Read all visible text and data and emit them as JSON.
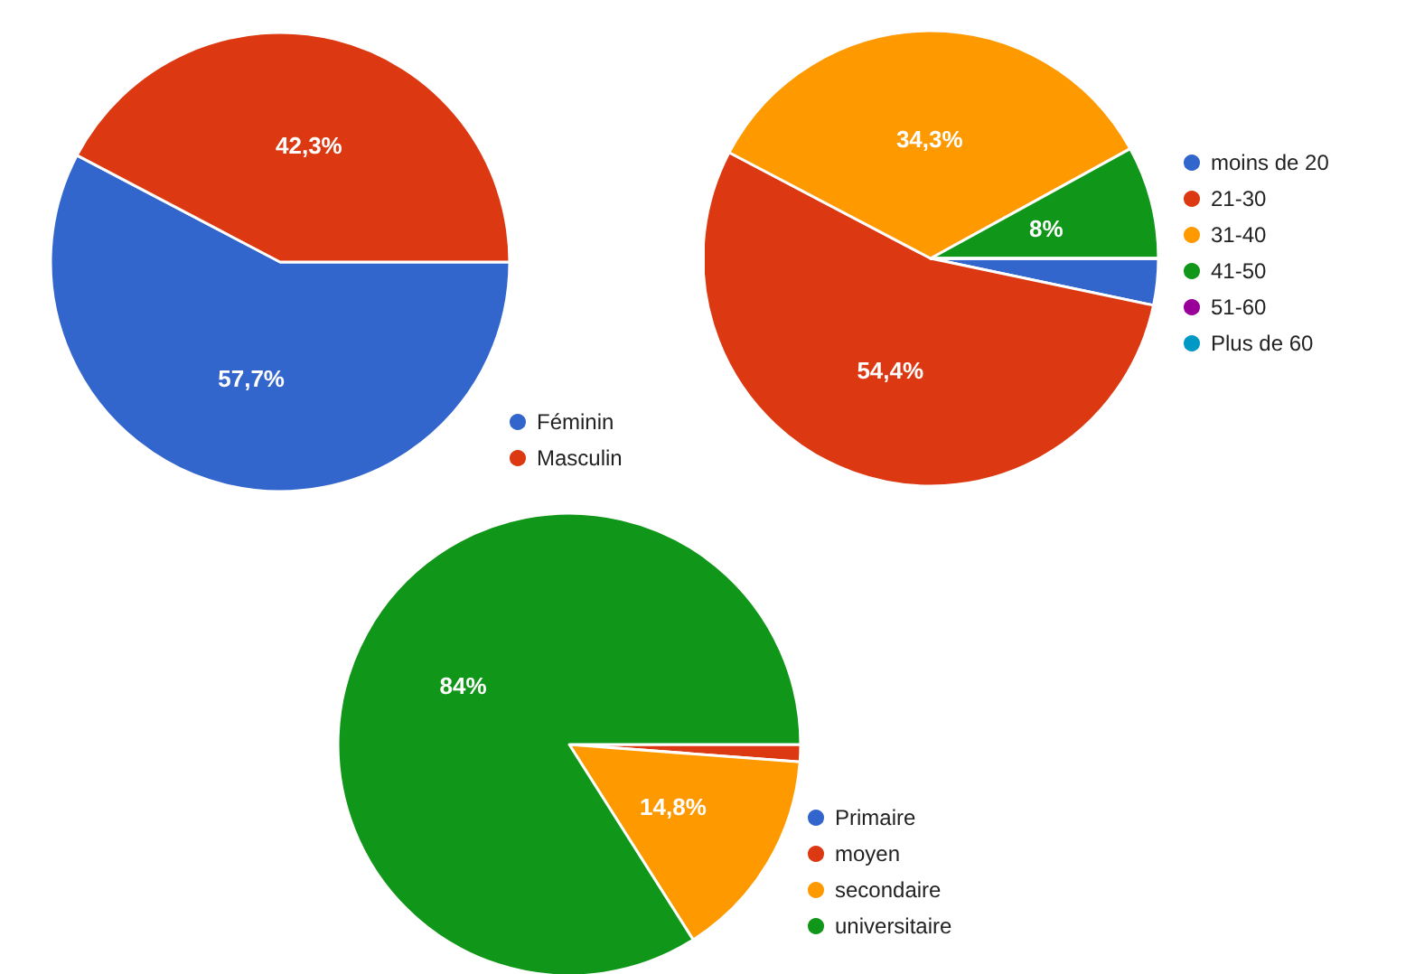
{
  "chart_data": [
    {
      "type": "pie",
      "categories": [
        "Féminin",
        "Masculin"
      ],
      "values": [
        57.7,
        42.3
      ],
      "colors": [
        "#3366cc",
        "#dc3912"
      ],
      "value_labels": [
        "57,7%",
        "42,3%"
      ],
      "legend": "bottom right"
    },
    {
      "type": "pie",
      "categories": [
        "moins de 20",
        "21-30",
        "31-40",
        "41-50",
        "51-60",
        "Plus de 60"
      ],
      "values": [
        3.3,
        54.4,
        34.3,
        8,
        0,
        0
      ],
      "colors": [
        "#3366cc",
        "#dc3912",
        "#ff9900",
        "#109618",
        "#990099",
        "#0099c6"
      ],
      "value_labels": [
        null,
        "54,4%",
        "34,3%",
        "8%",
        null,
        null
      ],
      "legend": "right"
    },
    {
      "type": "pie",
      "categories": [
        "Primaire",
        "moyen",
        "secondaire",
        "universitaire"
      ],
      "values": [
        0,
        1.2,
        14.8,
        84
      ],
      "colors": [
        "#3366cc",
        "#dc3912",
        "#ff9900",
        "#109618"
      ],
      "value_labels": [
        null,
        null,
        "14,8%",
        "84%"
      ],
      "legend": "bottom right"
    }
  ]
}
